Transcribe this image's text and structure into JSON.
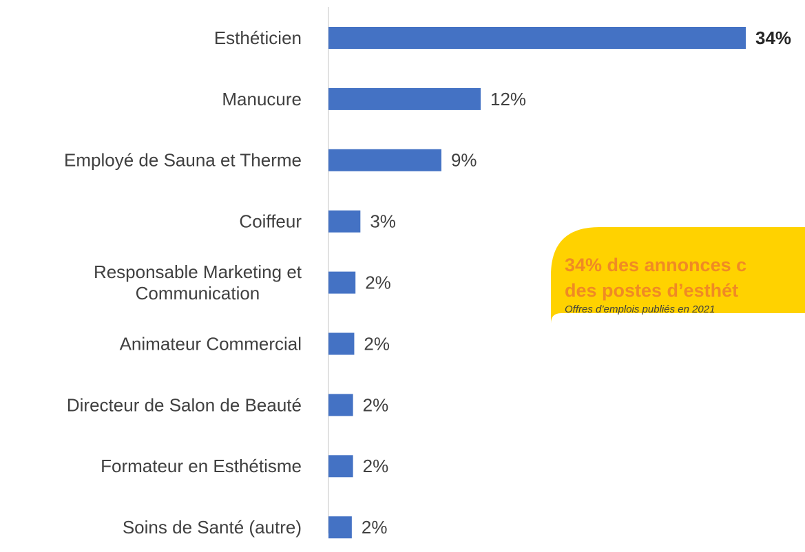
{
  "chart_data": {
    "type": "bar",
    "orientation": "horizontal",
    "categories": [
      "Esthéticien",
      "Manucure",
      "Employé de Sauna et Therme",
      "Coiffeur",
      "Responsable Marketing et Communication",
      "Animateur Commercial",
      "Directeur de Salon de Beauté",
      "Formateur en Esthétisme",
      "Soins de Santé (autre)"
    ],
    "values": [
      34,
      12.4,
      9.2,
      2.6,
      2.2,
      2.1,
      2.0,
      2.0,
      1.9
    ],
    "value_labels": [
      "34%",
      "12%",
      "9%",
      "3%",
      "2%",
      "2%",
      "2%",
      "2%",
      "2%"
    ],
    "color": "#4472c4",
    "annotation": {
      "lines": [
        "34% des annonces c",
        "des postes d’esthét"
      ],
      "note": "Offres d’emplois publiés en 2021"
    }
  }
}
